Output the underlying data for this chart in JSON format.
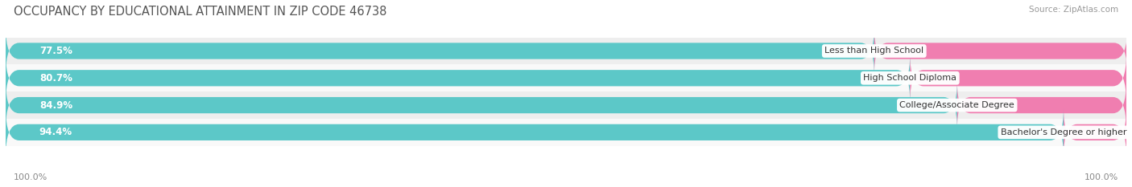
{
  "title": "OCCUPANCY BY EDUCATIONAL ATTAINMENT IN ZIP CODE 46738",
  "source": "Source: ZipAtlas.com",
  "categories": [
    "Less than High School",
    "High School Diploma",
    "College/Associate Degree",
    "Bachelor's Degree or higher"
  ],
  "owner_values": [
    77.5,
    80.7,
    84.9,
    94.4
  ],
  "renter_values": [
    22.6,
    19.3,
    15.1,
    5.6
  ],
  "owner_color": "#5CC8C8",
  "renter_color": "#F07EB0",
  "row_bg_colors": [
    "#eeeeee",
    "#f9f9f9",
    "#eeeeee",
    "#f9f9f9"
  ],
  "title_fontsize": 10.5,
  "label_fontsize": 8.5,
  "tick_fontsize": 8,
  "legend_fontsize": 9,
  "axis_label_left": "100.0%",
  "axis_label_right": "100.0%",
  "bar_height": 0.6,
  "figsize": [
    14.06,
    2.33
  ],
  "dpi": 100
}
